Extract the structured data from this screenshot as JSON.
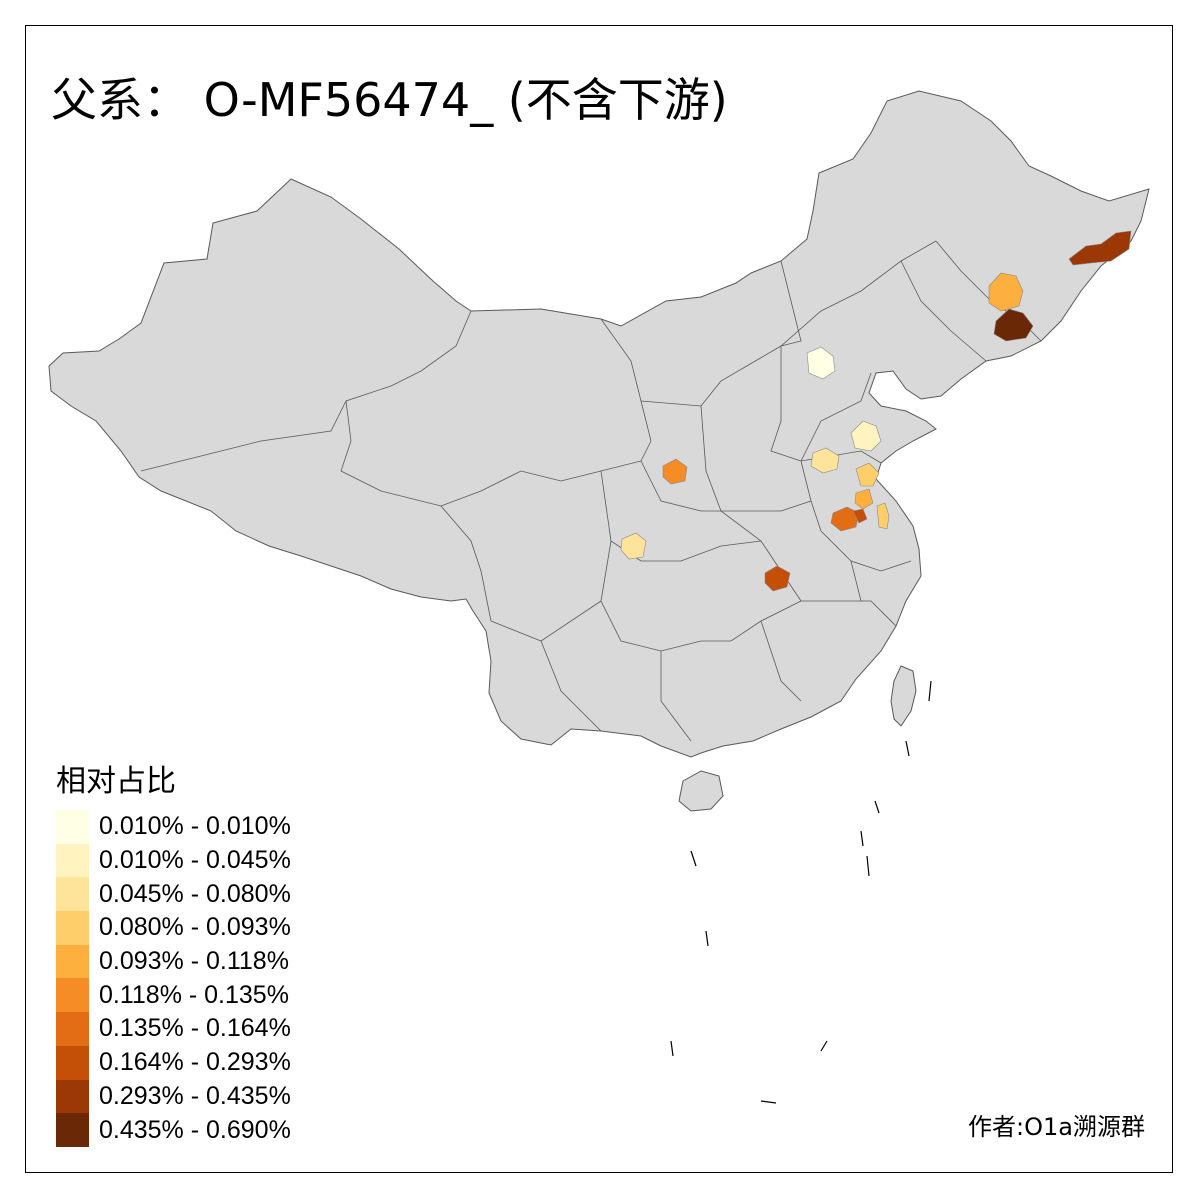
{
  "title": "父系： O-MF56474_ (不含下游)",
  "legend": {
    "title": "相对占比",
    "items": [
      {
        "label": "0.010% - 0.010%",
        "color": "#ffffe5"
      },
      {
        "label": "0.010% - 0.045%",
        "color": "#fff4c0"
      },
      {
        "label": "0.045% - 0.080%",
        "color": "#fee49b"
      },
      {
        "label": "0.080% - 0.093%",
        "color": "#fece6a"
      },
      {
        "label": "0.093% - 0.118%",
        "color": "#feb03f"
      },
      {
        "label": "0.118% - 0.135%",
        "color": "#f68c26"
      },
      {
        "label": "0.135% - 0.164%",
        "color": "#e36d14"
      },
      {
        "label": "0.164% - 0.293%",
        "color": "#c44f07"
      },
      {
        "label": "0.293% - 0.435%",
        "color": "#9b3805"
      },
      {
        "label": "0.435% - 0.690%",
        "color": "#6b2806"
      }
    ]
  },
  "author": "作者:O1a溯源群",
  "colors": {
    "land": "#d9d9d9",
    "border": "#595959",
    "frame": "#000000"
  },
  "highlighted_regions": [
    {
      "name": "beijing",
      "color": "#ffffe5"
    },
    {
      "name": "yanbian-east",
      "color": "#9b3805"
    },
    {
      "name": "jilin-center",
      "color": "#feb03f"
    },
    {
      "name": "yanbian-south",
      "color": "#6b2806"
    },
    {
      "name": "shandong-jinan",
      "color": "#fff4c0"
    },
    {
      "name": "shandong-liaocheng",
      "color": "#fee49b"
    },
    {
      "name": "jiangsu-xuzhou",
      "color": "#fece6a"
    },
    {
      "name": "jiangsu-suqian",
      "color": "#feb03f"
    },
    {
      "name": "jiangsu-yangzhou",
      "color": "#fece6a"
    },
    {
      "name": "anhui-bengbu",
      "color": "#e36d14"
    },
    {
      "name": "anhui-huaibei",
      "color": "#c44f07"
    },
    {
      "name": "shaanxi-yanan",
      "color": "#f68c26"
    },
    {
      "name": "sichuan-nanchong",
      "color": "#fee49b"
    },
    {
      "name": "hubei-xiaogan",
      "color": "#c44f07"
    }
  ]
}
